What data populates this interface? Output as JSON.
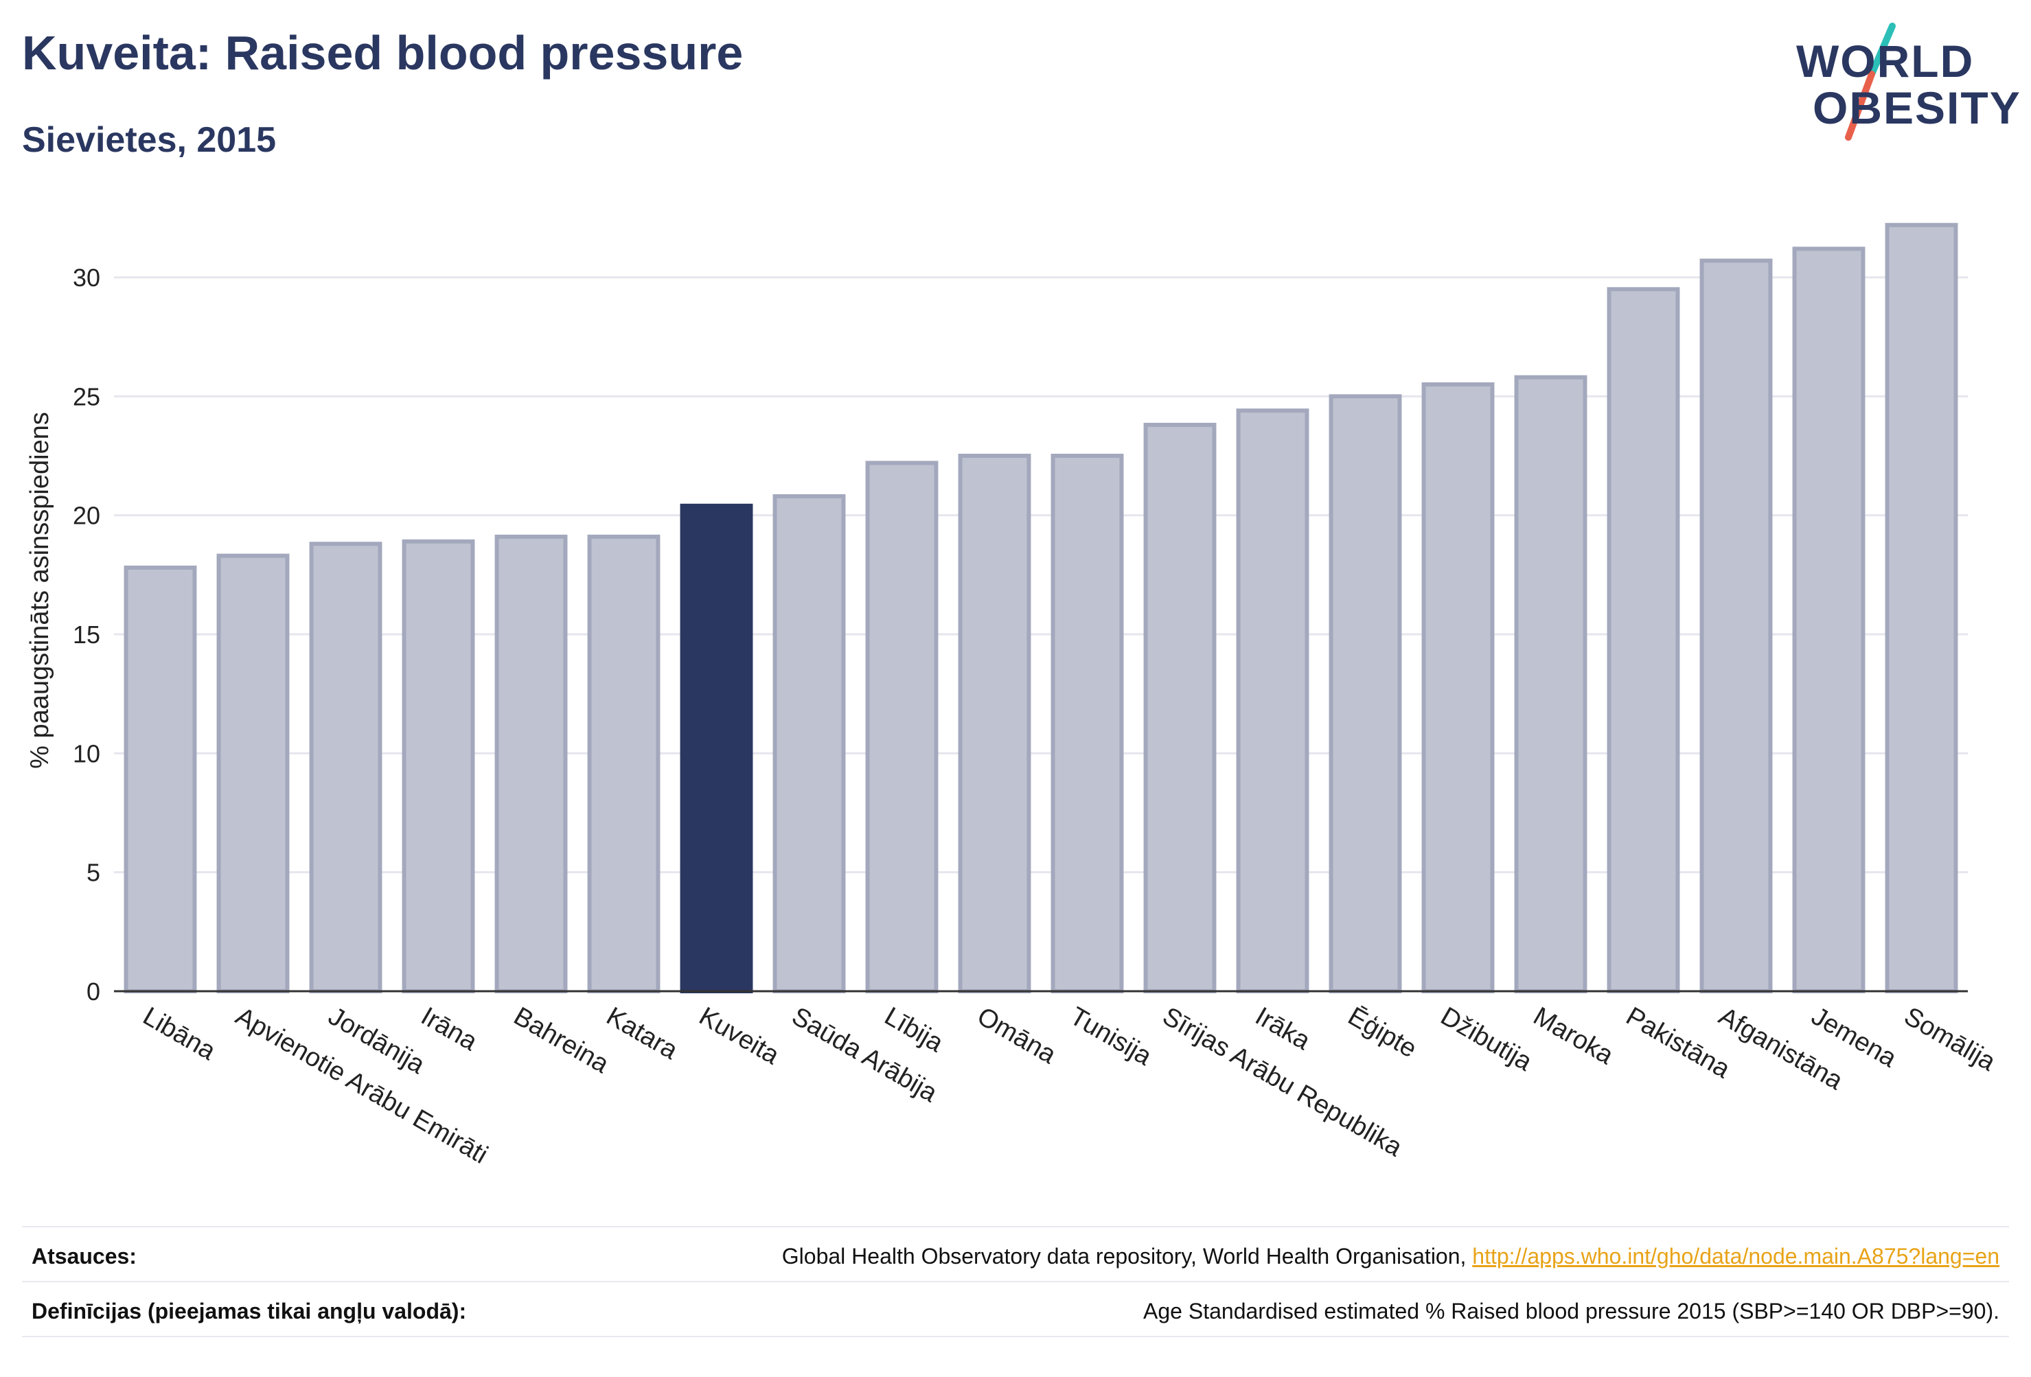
{
  "header": {
    "title": "Kuveita: Raised blood pressure",
    "subtitle": "Sievietes, 2015"
  },
  "logo": {
    "line1": "WORLD",
    "line2": "OBESITY",
    "slash_colors": [
      "#2bbfb8",
      "#e8604c"
    ]
  },
  "chart_data": {
    "type": "bar",
    "title": "Kuveita: Raised blood pressure",
    "subtitle": "Sievietes, 2015",
    "ylabel": "% paaugstināts asinsspiediens",
    "xlabel": "",
    "ylim": [
      0,
      33
    ],
    "yticks": [
      0,
      5,
      10,
      15,
      20,
      25,
      30
    ],
    "grid": true,
    "highlight": "Kuveita",
    "colors": {
      "bar": "#bfc2d0",
      "bar_border": "#a3a8bd",
      "highlight": "#2a3760",
      "axis": "#333333",
      "grid": "#e6e6ee"
    },
    "categories": [
      "Libāna",
      "Apvienotie Arābu Emirāti",
      "Jordānija",
      "Irāna",
      "Bahreina",
      "Katara",
      "Kuveita",
      "Saūda Arābija",
      "Lībija",
      "Omāna",
      "Tunisija",
      "Sīrijas Arābu Republika",
      "Irāka",
      "Ēģipte",
      "Džibutija",
      "Maroka",
      "Pakistāna",
      "Afganistāna",
      "Jemena",
      "Somālija"
    ],
    "values": [
      17.8,
      18.3,
      18.8,
      18.9,
      19.1,
      19.1,
      20.4,
      20.8,
      22.2,
      22.5,
      22.5,
      23.8,
      24.4,
      25.0,
      25.5,
      25.8,
      29.5,
      30.7,
      31.2,
      32.2
    ]
  },
  "footer": {
    "sources_label": "Atsauces:",
    "sources_text": "Global Health Observatory data repository, World Health Organisation, ",
    "sources_link": "http://apps.who.int/gho/data/node.main.A875?lang=en",
    "definitions_label": "Definīcijas (pieejamas tikai angļu valodā):",
    "definitions_text": "Age Standardised estimated % Raised blood pressure 2015 (SBP>=140 OR DBP>=90)."
  }
}
